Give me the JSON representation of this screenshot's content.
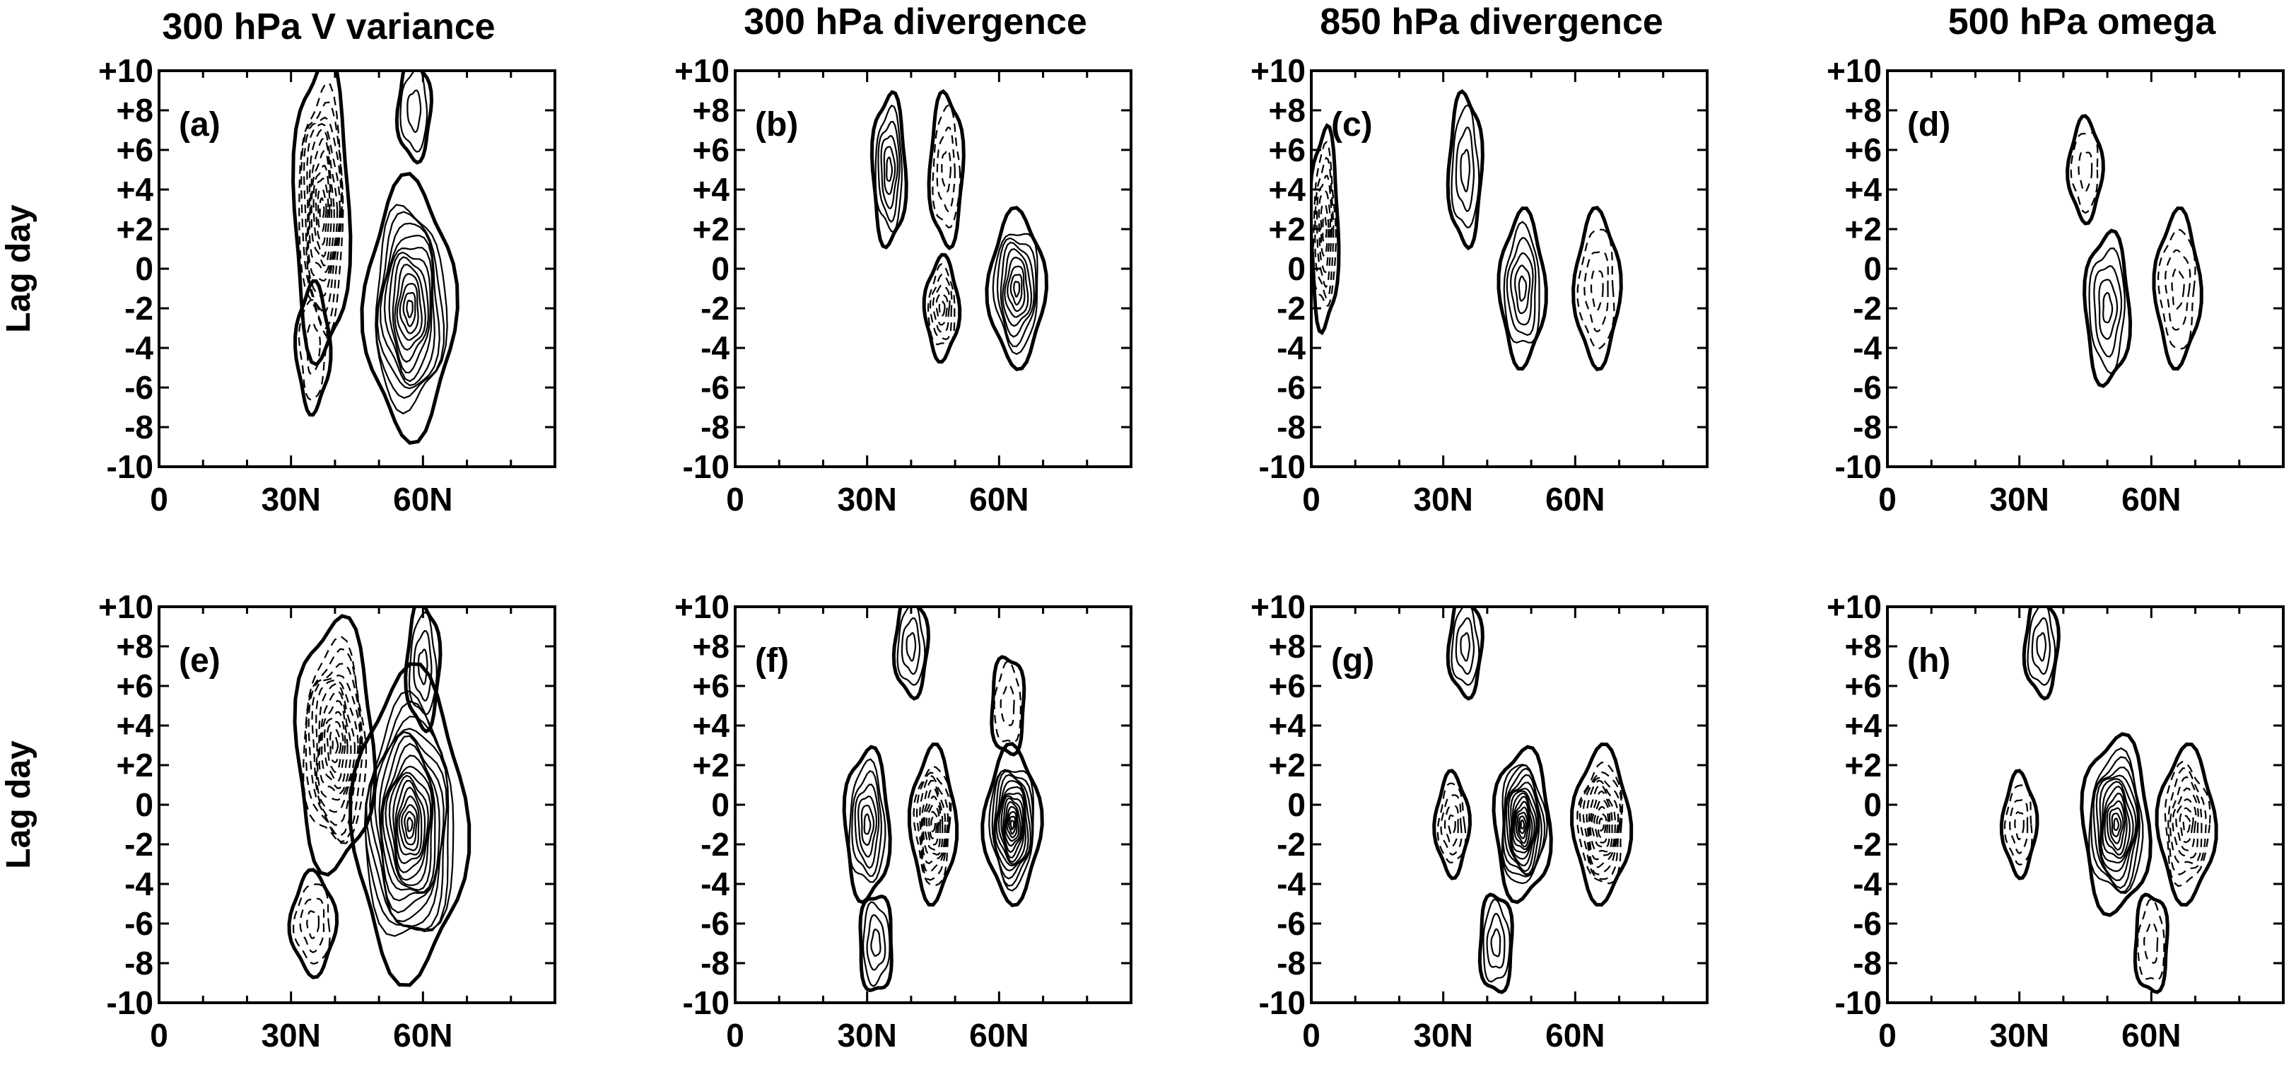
{
  "figure": {
    "column_titles": [
      "300 hPa V variance",
      "300 hPa divergence",
      "850 hPa divergence",
      "500 hPa omega"
    ],
    "row_ylabel": "Lag day"
  },
  "chart_data": [
    {
      "type": "contour",
      "panel": "(a)",
      "title": "300 hPa V variance",
      "ylabel": "Lag day",
      "xticks": [
        "0",
        "30N",
        "60N"
      ],
      "yticks": [
        "+10",
        "+8",
        "+6",
        "+4",
        "+2",
        "0",
        "-2",
        "-4",
        "-6",
        "-8",
        "-10"
      ],
      "xlim": [
        0,
        90
      ],
      "ylim": [
        -10,
        10
      ],
      "legend": "none",
      "features": [
        {
          "sign": "neg",
          "lat": 37,
          "lag": 3,
          "rx": 5,
          "ry": 6,
          "n": 11
        },
        {
          "sign": "neg",
          "lat": 35,
          "lag": -4,
          "rx": 3,
          "ry": 2.5,
          "n": 2
        },
        {
          "sign": "pos",
          "lat": 57,
          "lag": -2,
          "rx": 8,
          "ry": 5,
          "n": 12
        },
        {
          "sign": "pos",
          "lat": 58,
          "lag": 8,
          "rx": 3,
          "ry": 2,
          "n": 2
        }
      ]
    },
    {
      "type": "contour",
      "panel": "(b)",
      "title": "300 hPa divergence",
      "ylabel": "",
      "xticks": [
        "0",
        "30N",
        "60N"
      ],
      "yticks": [
        "+10",
        "+8",
        "+6",
        "+4",
        "+2",
        "0",
        "-2",
        "-4",
        "-6",
        "-8",
        "-10"
      ],
      "xlim": [
        0,
        90
      ],
      "ylim": [
        -10,
        10
      ],
      "legend": "none",
      "features": [
        {
          "sign": "pos",
          "lat": 35,
          "lag": 5,
          "rx": 3,
          "ry": 3,
          "n": 5
        },
        {
          "sign": "neg",
          "lat": 47,
          "lag": -2,
          "rx": 3,
          "ry": 2,
          "n": 5
        },
        {
          "sign": "pos",
          "lat": 64,
          "lag": -1,
          "rx": 5,
          "ry": 3,
          "n": 8
        },
        {
          "sign": "neg",
          "lat": 48,
          "lag": 5,
          "rx": 3,
          "ry": 3,
          "n": 3
        }
      ]
    },
    {
      "type": "contour",
      "panel": "(c)",
      "title": "850 hPa divergence",
      "ylabel": "",
      "xticks": [
        "0",
        "30N",
        "60N"
      ],
      "yticks": [
        "+10",
        "+8",
        "+6",
        "+4",
        "+2",
        "0",
        "-2",
        "-4",
        "-6",
        "-8",
        "-10"
      ],
      "xlim": [
        0,
        90
      ],
      "ylim": [
        -10,
        10
      ],
      "legend": "none",
      "features": [
        {
          "sign": "neg",
          "lat": 3,
          "lag": 2,
          "rx": 2.5,
          "ry": 4,
          "n": 6
        },
        {
          "sign": "pos",
          "lat": 48,
          "lag": -1,
          "rx": 4,
          "ry": 3,
          "n": 5
        },
        {
          "sign": "neg",
          "lat": 65,
          "lag": -1,
          "rx": 4,
          "ry": 3,
          "n": 3
        },
        {
          "sign": "pos",
          "lat": 35,
          "lag": 5,
          "rx": 3,
          "ry": 3,
          "n": 3
        }
      ]
    },
    {
      "type": "contour",
      "panel": "(d)",
      "title": "500 hPa omega",
      "ylabel": "",
      "xticks": [
        "0",
        "30N",
        "60N"
      ],
      "yticks": [
        "+10",
        "+8",
        "+6",
        "+4",
        "+2",
        "0",
        "-2",
        "-4",
        "-6",
        "-8",
        "-10"
      ],
      "xlim": [
        0,
        90
      ],
      "ylim": [
        -10,
        10
      ],
      "legend": "none",
      "features": [
        {
          "sign": "pos",
          "lat": 50,
          "lag": -2,
          "rx": 4,
          "ry": 3,
          "n": 4
        },
        {
          "sign": "neg",
          "lat": 66,
          "lag": -1,
          "rx": 4,
          "ry": 3,
          "n": 3
        },
        {
          "sign": "neg",
          "lat": 45,
          "lag": 5,
          "rx": 3,
          "ry": 2,
          "n": 2
        }
      ]
    },
    {
      "type": "contour",
      "panel": "(e)",
      "title": "",
      "ylabel": "Lag day",
      "xticks": [
        "0",
        "30N",
        "60N"
      ],
      "yticks": [
        "+10",
        "+8",
        "+6",
        "+4",
        "+2",
        "0",
        "-2",
        "-4",
        "-6",
        "-8",
        "-10"
      ],
      "xlim": [
        0,
        90
      ],
      "ylim": [
        -10,
        10
      ],
      "legend": "none",
      "features": [
        {
          "sign": "neg",
          "lat": 40,
          "lag": 3,
          "rx": 7,
          "ry": 5,
          "n": 12
        },
        {
          "sign": "pos",
          "lat": 57,
          "lag": -1,
          "rx": 10,
          "ry": 6,
          "n": 18
        },
        {
          "sign": "neg",
          "lat": 35,
          "lag": -6,
          "rx": 4,
          "ry": 2,
          "n": 3
        },
        {
          "sign": "pos",
          "lat": 60,
          "lag": 7,
          "rx": 3,
          "ry": 2.5,
          "n": 3
        }
      ]
    },
    {
      "type": "contour",
      "panel": "(f)",
      "title": "",
      "ylabel": "",
      "xticks": [
        "0",
        "30N",
        "60N"
      ],
      "yticks": [
        "+10",
        "+8",
        "+6",
        "+4",
        "+2",
        "0",
        "-2",
        "-4",
        "-6",
        "-8",
        "-10"
      ],
      "xlim": [
        0,
        90
      ],
      "ylim": [
        -10,
        10
      ],
      "legend": "none",
      "features": [
        {
          "sign": "pos",
          "lat": 30,
          "lag": -1,
          "rx": 4,
          "ry": 3,
          "n": 6
        },
        {
          "sign": "neg",
          "lat": 45,
          "lag": -1,
          "rx": 4,
          "ry": 3,
          "n": 9
        },
        {
          "sign": "pos",
          "lat": 63,
          "lag": -1,
          "rx": 5,
          "ry": 3,
          "n": 14
        },
        {
          "sign": "pos",
          "lat": 40,
          "lag": 8,
          "rx": 3,
          "ry": 2,
          "n": 3
        },
        {
          "sign": "neg",
          "lat": 62,
          "lag": 5,
          "rx": 3,
          "ry": 2,
          "n": 2
        },
        {
          "sign": "pos",
          "lat": 32,
          "lag": -7,
          "rx": 3,
          "ry": 2,
          "n": 3
        }
      ]
    },
    {
      "type": "contour",
      "panel": "(g)",
      "title": "",
      "ylabel": "",
      "xticks": [
        "0",
        "30N",
        "60N"
      ],
      "yticks": [
        "+10",
        "+8",
        "+6",
        "+4",
        "+2",
        "0",
        "-2",
        "-4",
        "-6",
        "-8",
        "-10"
      ],
      "xlim": [
        0,
        90
      ],
      "ylim": [
        -10,
        10
      ],
      "legend": "none",
      "features": [
        {
          "sign": "pos",
          "lat": 48,
          "lag": -1,
          "rx": 5,
          "ry": 3,
          "n": 14
        },
        {
          "sign": "neg",
          "lat": 66,
          "lag": -1,
          "rx": 5,
          "ry": 3,
          "n": 10
        },
        {
          "sign": "neg",
          "lat": 32,
          "lag": -1,
          "rx": 3,
          "ry": 2,
          "n": 4
        },
        {
          "sign": "pos",
          "lat": 35,
          "lag": 8,
          "rx": 3,
          "ry": 2,
          "n": 3
        },
        {
          "sign": "pos",
          "lat": 42,
          "lag": -7,
          "rx": 3,
          "ry": 2,
          "n": 3
        }
      ]
    },
    {
      "type": "contour",
      "panel": "(h)",
      "title": "",
      "ylabel": "",
      "xticks": [
        "0",
        "30N",
        "60N"
      ],
      "yticks": [
        "+10",
        "+8",
        "+6",
        "+4",
        "+2",
        "0",
        "-2",
        "-4",
        "-6",
        "-8",
        "-10"
      ],
      "xlim": [
        0,
        90
      ],
      "ylim": [
        -10,
        10
      ],
      "legend": "none",
      "features": [
        {
          "sign": "pos",
          "lat": 52,
          "lag": -1,
          "rx": 6,
          "ry": 3.5,
          "n": 12
        },
        {
          "sign": "neg",
          "lat": 68,
          "lag": -1,
          "rx": 5,
          "ry": 3,
          "n": 7
        },
        {
          "sign": "neg",
          "lat": 30,
          "lag": -1,
          "rx": 3,
          "ry": 2,
          "n": 3
        },
        {
          "sign": "pos",
          "lat": 35,
          "lag": 8,
          "rx": 3,
          "ry": 2,
          "n": 3
        },
        {
          "sign": "neg",
          "lat": 60,
          "lag": -7,
          "rx": 3,
          "ry": 2,
          "n": 2
        }
      ]
    }
  ]
}
